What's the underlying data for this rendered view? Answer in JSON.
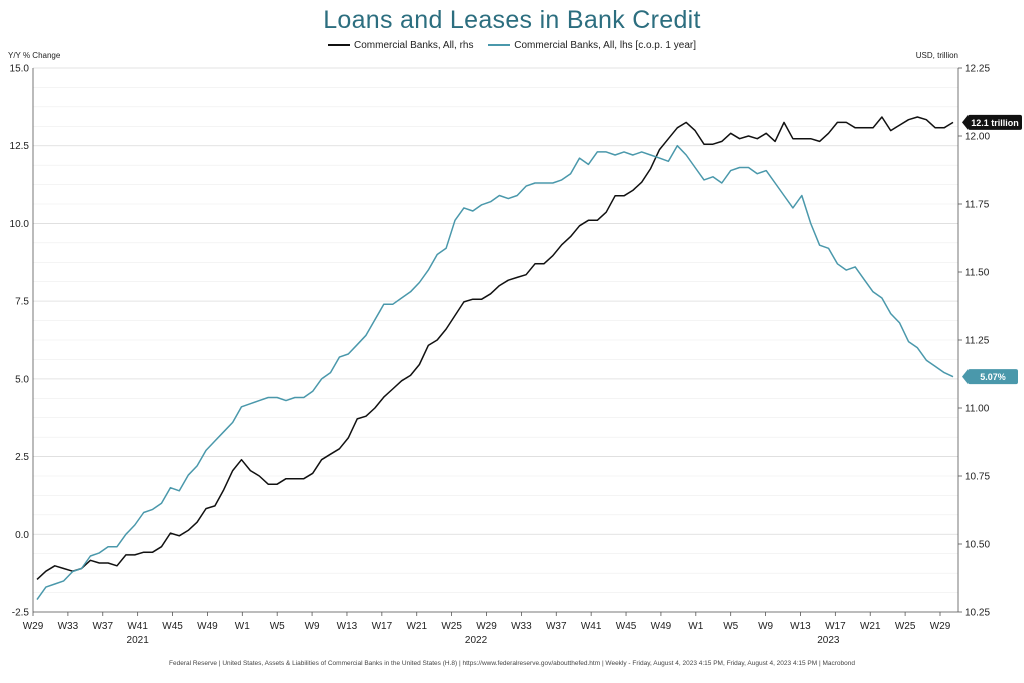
{
  "chart_data": {
    "type": "line",
    "title": "Loans and Leases in Bank Credit",
    "left_axis_label": "Y/Y % Change",
    "right_axis_label": "USD, trillion",
    "left_ylim": [
      -2.5,
      15
    ],
    "right_ylim": [
      10.25,
      12.25
    ],
    "left_ticks": [
      "15.0",
      "12.5",
      "10.0",
      "7.5",
      "5.0",
      "2.5",
      "0.0",
      "-2.5"
    ],
    "right_ticks": [
      "12.25",
      "12.00",
      "11.75",
      "11.50",
      "11.25",
      "11.00",
      "10.75",
      "10.50",
      "10.25"
    ],
    "x_ticks": [
      "W29",
      "W33",
      "W37",
      "W41",
      "W45",
      "W49",
      "W1",
      "W5",
      "W9",
      "W13",
      "W17",
      "W21",
      "W25",
      "W29",
      "W33",
      "W37",
      "W41",
      "W45",
      "W49",
      "W1",
      "W5",
      "W9",
      "W13",
      "W17",
      "W21",
      "W25",
      "W29"
    ],
    "years": [
      "2021",
      "2022",
      "2023"
    ],
    "grid": true,
    "legend_position": "top-center",
    "series": [
      {
        "name": "Commercial Banks, All, rhs",
        "axis": "right",
        "color": "#111111",
        "badge": "12.1 trillion",
        "values": [
          10.37,
          10.4,
          10.42,
          10.41,
          10.4,
          10.41,
          10.44,
          10.43,
          10.43,
          10.42,
          10.46,
          10.46,
          10.47,
          10.47,
          10.49,
          10.54,
          10.53,
          10.55,
          10.58,
          10.63,
          10.64,
          10.7,
          10.77,
          10.81,
          10.77,
          10.75,
          10.72,
          10.72,
          10.74,
          10.74,
          10.74,
          10.76,
          10.81,
          10.83,
          10.85,
          10.89,
          10.96,
          10.97,
          11.0,
          11.04,
          11.07,
          11.1,
          11.12,
          11.16,
          11.23,
          11.25,
          11.29,
          11.34,
          11.39,
          11.4,
          11.4,
          11.42,
          11.45,
          11.47,
          11.48,
          11.49,
          11.53,
          11.53,
          11.56,
          11.6,
          11.63,
          11.67,
          11.69,
          11.69,
          11.72,
          11.78,
          11.78,
          11.8,
          11.83,
          11.88,
          11.95,
          11.99,
          12.03,
          12.05,
          12.02,
          11.97,
          11.97,
          11.98,
          12.01,
          11.99,
          12.0,
          11.99,
          12.01,
          11.98,
          12.05,
          11.99,
          11.99,
          11.99,
          11.98,
          12.01,
          12.05,
          12.05,
          12.03,
          12.03,
          12.03,
          12.07,
          12.02,
          12.04,
          12.06,
          12.07,
          12.06,
          12.03,
          12.03,
          12.05
        ]
      },
      {
        "name": "Commercial Banks, All, lhs [c.o.p. 1 year]",
        "axis": "left",
        "color": "#4a98ab",
        "badge": "5.07%",
        "values": [
          -2.1,
          -1.7,
          -1.6,
          -1.5,
          -1.2,
          -1.1,
          -0.7,
          -0.6,
          -0.4,
          -0.4,
          0.0,
          0.3,
          0.7,
          0.8,
          1.0,
          1.5,
          1.4,
          1.9,
          2.2,
          2.7,
          3.0,
          3.3,
          3.6,
          4.1,
          4.2,
          4.3,
          4.4,
          4.4,
          4.3,
          4.4,
          4.4,
          4.6,
          5.0,
          5.2,
          5.7,
          5.8,
          6.1,
          6.4,
          6.9,
          7.4,
          7.4,
          7.6,
          7.8,
          8.1,
          8.5,
          9.0,
          9.2,
          10.1,
          10.5,
          10.4,
          10.6,
          10.7,
          10.9,
          10.8,
          10.9,
          11.2,
          11.3,
          11.3,
          11.3,
          11.4,
          11.6,
          12.1,
          11.9,
          12.3,
          12.3,
          12.2,
          12.3,
          12.2,
          12.3,
          12.2,
          12.1,
          12.0,
          12.5,
          12.2,
          11.8,
          11.4,
          11.5,
          11.3,
          11.7,
          11.8,
          11.8,
          11.6,
          11.7,
          11.3,
          10.9,
          10.5,
          10.9,
          10.0,
          9.3,
          9.2,
          8.7,
          8.5,
          8.6,
          8.2,
          7.8,
          7.6,
          7.1,
          6.8,
          6.2,
          6.0,
          5.6,
          5.4,
          5.2,
          5.07
        ]
      }
    ]
  },
  "source_text": "Federal Reserve  |  United States, Assets & Liabilities of Commercial Banks in the United States (H.8)  |  https://www.federalreserve.gov/aboutthefed.htm  |  Weekly - Friday, August 4, 2023 4:15 PM, Friday, August 4, 2023 4:15 PM  |  Macrobond"
}
